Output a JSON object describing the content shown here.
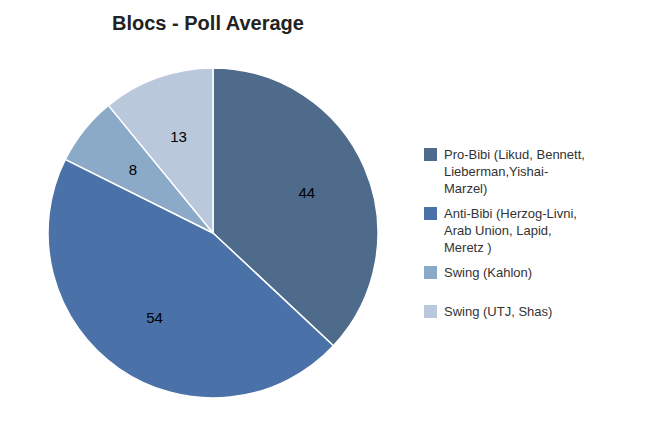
{
  "chart_data": {
    "type": "pie",
    "title": "Blocs - Poll Average",
    "categories": [
      "Pro-Bibi (Likud, Bennett,\nLieberman,Yishai-\nMarzel)",
      "Anti-Bibi (Herzog-Livni,\nArab Union, Lapid,\nMeretz )",
      "Swing (Kahlon)",
      "Swing (UTJ, Shas)"
    ],
    "values": [
      44,
      54,
      8,
      13
    ],
    "colors": [
      "#4E6B8C",
      "#4A72A8",
      "#8BAAC8",
      "#BAC8DC"
    ],
    "data_labels": true,
    "legend": "right"
  }
}
